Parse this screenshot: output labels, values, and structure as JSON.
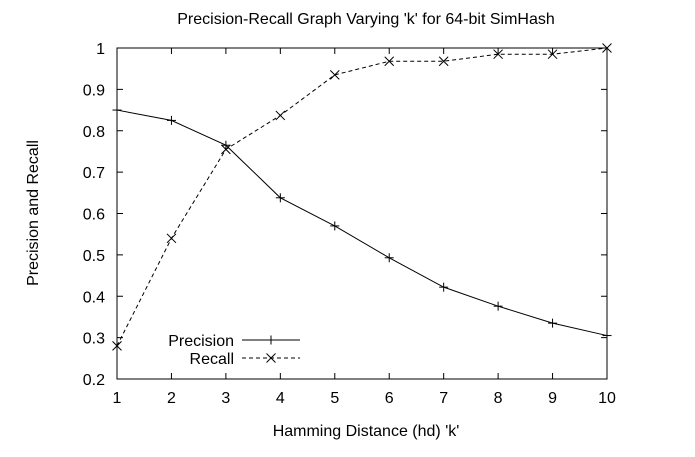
{
  "chart_data": {
    "type": "line",
    "title": "Precision-Recall Graph Varying 'k' for 64-bit SimHash",
    "xlabel": "Hamming Distance (hd) 'k'",
    "ylabel": "Precision and Recall",
    "xlim": [
      1,
      10
    ],
    "ylim": [
      0.2,
      1.0
    ],
    "x": [
      1,
      2,
      3,
      4,
      5,
      6,
      7,
      8,
      9,
      10
    ],
    "x_ticks": [
      "1",
      "2",
      "3",
      "4",
      "5",
      "6",
      "7",
      "8",
      "9",
      "10"
    ],
    "y_ticks": [
      "0.2",
      "0.3",
      "0.4",
      "0.5",
      "0.6",
      "0.7",
      "0.8",
      "0.9",
      "1"
    ],
    "grid": false,
    "legend_position": "bottom-left",
    "series": [
      {
        "name": "Precision",
        "style": "solid",
        "marker": "plus",
        "values": [
          0.85,
          0.825,
          0.765,
          0.638,
          0.57,
          0.493,
          0.422,
          0.376,
          0.335,
          0.305
        ]
      },
      {
        "name": "Recall",
        "style": "dashed",
        "marker": "cross",
        "values": [
          0.28,
          0.54,
          0.755,
          0.837,
          0.935,
          0.968,
          0.968,
          0.985,
          0.985,
          1.0
        ]
      }
    ]
  }
}
